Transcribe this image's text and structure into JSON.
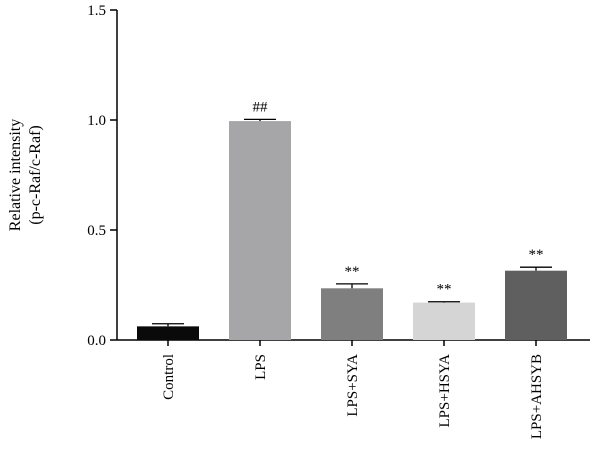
{
  "chart_data": {
    "type": "bar",
    "title": "",
    "xlabel": "",
    "ylabel_lines": [
      "Relative intensity",
      "(p-c-Raf/c-Raf)"
    ],
    "ylim": [
      0,
      1.5
    ],
    "yticks": [
      "0.0",
      "0.5",
      "1.0",
      "1.5"
    ],
    "grid": false,
    "categories": [
      "Control",
      "LPS",
      "LPS+SYA",
      "LPS+HSYA",
      "LPS+AHSYB"
    ],
    "values": [
      0.062,
      0.995,
      0.235,
      0.17,
      0.315
    ],
    "errors": [
      0.012,
      0.008,
      0.02,
      0.004,
      0.016
    ],
    "significance": [
      "",
      "##",
      "**",
      "**",
      "**"
    ],
    "colors": [
      "#0a0a0a",
      "#a6a6a8",
      "#7f7f7f",
      "#d5d5d5",
      "#5f5f5f"
    ]
  }
}
